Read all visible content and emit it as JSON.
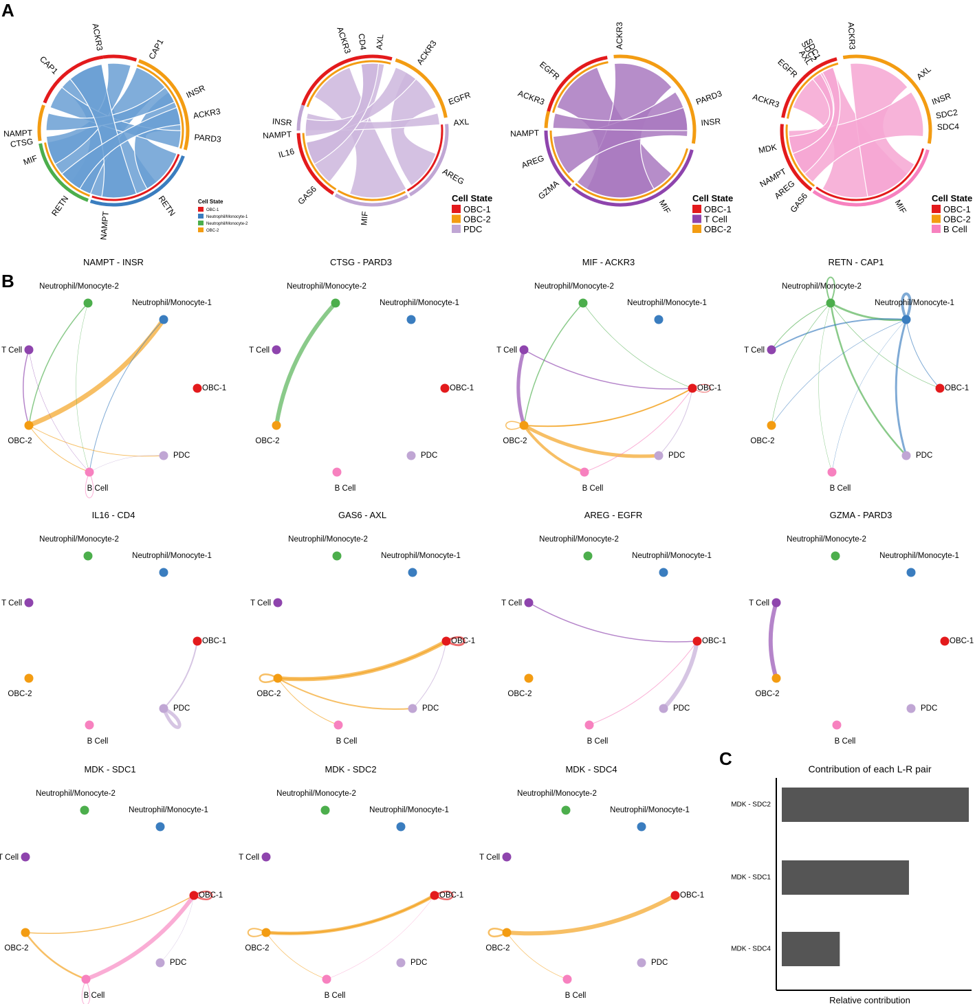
{
  "panel_labels": {
    "a": "A",
    "b": "B",
    "c": "C"
  },
  "colors": {
    "OBC-1": "#e31a1c",
    "OBC-2": "#f39c12",
    "Neutrophil/Monocyte-1": "#3a7dbf",
    "Neutrophil/Monocyte-2": "#4cae4c",
    "T Cell": "#8e44ad",
    "B Cell": "#f781bf",
    "PDC": "#c0a6d4",
    "bar": "#555555"
  },
  "chords": [
    {
      "legend_title": "Cell State",
      "legend": [
        "OBC-1",
        "Neutrophil/Monocyte-1",
        "Neutrophil/Monocyte-2",
        "OBC-2"
      ],
      "ribbon_color": "#6a9fd4",
      "labels": [
        "ACKR3",
        "CAP1",
        "INSR",
        "ACKR3",
        "PARD3",
        "CAP1",
        "NAMPT",
        "CTSG",
        "MIF",
        "RETN",
        "NAMPT",
        "RETN"
      ]
    },
    {
      "legend_title": "Cell State",
      "legend": [
        "OBC-1",
        "OBC-2",
        "PDC"
      ],
      "ribbon_color": "#cdb6dd",
      "labels": [
        "ACKR3",
        "CD4",
        "AXL",
        "ACKR3",
        "EGFR",
        "AXL",
        "INSR",
        "NAMPT",
        "IL16",
        "GAS6",
        "MIF",
        "AREG"
      ]
    },
    {
      "legend_title": "Cell State",
      "legend": [
        "OBC-1",
        "T Cell",
        "OBC-2"
      ],
      "ribbon_color": "#a979c0",
      "labels": [
        "ACKR3",
        "EGFR",
        "ACKR3",
        "PARD3",
        "INSR",
        "NAMPT",
        "AREG",
        "GZMA",
        "MIF"
      ]
    },
    {
      "legend_title": "Cell State",
      "legend": [
        "OBC-1",
        "OBC-2",
        "B Cell"
      ],
      "ribbon_color": "#f6a6d2",
      "labels": [
        "ACKR3",
        "SDC1",
        "SDC2",
        "AXL",
        "EGFR",
        "ACKR3",
        "AXL",
        "INSR",
        "SDC2",
        "SDC4",
        "MDK",
        "NAMPT",
        "AREG",
        "GAS6",
        "MIF"
      ]
    }
  ],
  "node_names": [
    "Neutrophil/Monocyte-2",
    "Neutrophil/Monocyte-1",
    "T Cell",
    "OBC-1",
    "OBC-2",
    "PDC",
    "B Cell"
  ],
  "networks": [
    {
      "title": "NAMPT - INSR",
      "edges": [
        [
          "OBC-2",
          "Neutrophil/Monocyte-1",
          7
        ],
        [
          "Neutrophil/Monocyte-2",
          "OBC-2",
          1.5
        ],
        [
          "T Cell",
          "OBC-2",
          1.5
        ],
        [
          "Neutrophil/Monocyte-1",
          "B Cell",
          1
        ],
        [
          "OBC-2",
          "PDC",
          1
        ],
        [
          "OBC-2",
          "B Cell",
          1
        ],
        [
          "T Cell",
          "B Cell",
          0.5
        ],
        [
          "Neutrophil/Monocyte-2",
          "B Cell",
          0.5
        ],
        [
          "PDC",
          "B Cell",
          0.5
        ],
        [
          "B Cell",
          "B Cell",
          1
        ]
      ]
    },
    {
      "title": "CTSG - PARD3",
      "edges": [
        [
          "Neutrophil/Monocyte-2",
          "OBC-2",
          6
        ]
      ]
    },
    {
      "title": "MIF - ACKR3",
      "edges": [
        [
          "T Cell",
          "OBC-2",
          5
        ],
        [
          "T Cell",
          "OBC-1",
          1.5
        ],
        [
          "Neutrophil/Monocyte-2",
          "OBC-2",
          1.5
        ],
        [
          "Neutrophil/Monocyte-2",
          "OBC-1",
          0.7
        ],
        [
          "OBC-2",
          "OBC-1",
          2
        ],
        [
          "OBC-2",
          "OBC-1",
          1
        ],
        [
          "OBC-2",
          "PDC",
          5
        ],
        [
          "OBC-2",
          "B Cell",
          4
        ],
        [
          "B Cell",
          "OBC-1",
          1
        ],
        [
          "PDC",
          "OBC-1",
          1
        ],
        [
          "OBC-2",
          "OBC-2",
          1.5
        ],
        [
          "OBC-1",
          "OBC-1",
          1
        ]
      ]
    },
    {
      "title": "RETN - CAP1",
      "edges": [
        [
          "Neutrophil/Monocyte-2",
          "Neutrophil/Monocyte-1",
          3
        ],
        [
          "Neutrophil/Monocyte-2",
          "PDC",
          2.5
        ],
        [
          "Neutrophil/Monocyte-1",
          "PDC",
          3
        ],
        [
          "Neutrophil/Monocyte-1",
          "T Cell",
          2
        ],
        [
          "Neutrophil/Monocyte-2",
          "T Cell",
          1
        ],
        [
          "Neutrophil/Monocyte-1",
          "OBC-1",
          1
        ],
        [
          "Neutrophil/Monocyte-2",
          "OBC-1",
          0.7
        ],
        [
          "Neutrophil/Monocyte-1",
          "OBC-2",
          0.7
        ],
        [
          "Neutrophil/Monocyte-2",
          "OBC-2",
          0.7
        ],
        [
          "Neutrophil/Monocyte-1",
          "B Cell",
          0.5
        ],
        [
          "Neutrophil/Monocyte-2",
          "B Cell",
          0.5
        ],
        [
          "Neutrophil/Monocyte-1",
          "Neutrophil/Monocyte-1",
          4
        ],
        [
          "Neutrophil/Monocyte-2",
          "Neutrophil/Monocyte-2",
          2
        ]
      ]
    },
    {
      "title": "IL16 - CD4",
      "edges": [
        [
          "PDC",
          "OBC-1",
          2
        ],
        [
          "PDC",
          "PDC",
          5
        ]
      ]
    },
    {
      "title": "GAS6 - AXL",
      "edges": [
        [
          "OBC-2",
          "OBC-1",
          6
        ],
        [
          "OBC-2",
          "OBC-1",
          1.5
        ],
        [
          "OBC-2",
          "PDC",
          2
        ],
        [
          "OBC-2",
          "B Cell",
          1
        ],
        [
          "PDC",
          "OBC-1",
          1
        ],
        [
          "OBC-2",
          "OBC-2",
          2.5
        ],
        [
          "OBC-1",
          "OBC-1",
          3
        ]
      ]
    },
    {
      "title": "AREG - EGFR",
      "edges": [
        [
          "T Cell",
          "OBC-1",
          1.5
        ],
        [
          "PDC",
          "OBC-1",
          6
        ],
        [
          "B Cell",
          "OBC-1",
          1
        ]
      ]
    },
    {
      "title": "GZMA - PARD3",
      "edges": [
        [
          "T Cell",
          "OBC-2",
          6
        ]
      ]
    },
    {
      "title": "MDK - SDC1",
      "edges": [
        [
          "OBC-2",
          "OBC-1",
          1.5
        ],
        [
          "OBC-2",
          "B Cell",
          2.5
        ],
        [
          "B Cell",
          "OBC-1",
          6
        ],
        [
          "PDC",
          "OBC-1",
          0.5
        ],
        [
          "B Cell",
          "B Cell",
          1
        ],
        [
          "OBC-1",
          "OBC-1",
          2.5
        ]
      ]
    },
    {
      "title": "MDK - SDC2",
      "edges": [
        [
          "OBC-2",
          "OBC-1",
          5
        ],
        [
          "OBC-2",
          "OBC-1",
          2
        ],
        [
          "OBC-2",
          "B Cell",
          0.7
        ],
        [
          "B Cell",
          "OBC-1",
          0.5
        ],
        [
          "OBC-2",
          "OBC-2",
          2
        ],
        [
          "OBC-1",
          "OBC-1",
          2.5
        ]
      ]
    },
    {
      "title": "MDK - SDC4",
      "edges": [
        [
          "OBC-2",
          "OBC-1",
          6
        ],
        [
          "OBC-2",
          "B Cell",
          0.7
        ],
        [
          "OBC-2",
          "OBC-2",
          2.5
        ]
      ]
    }
  ],
  "chart_data": {
    "type": "bar",
    "title": "Contribution of each L-R pair",
    "categories": [
      "MDK - SDC2",
      "MDK - SDC1",
      "MDK - SDC4"
    ],
    "values": [
      1.0,
      0.68,
      0.31
    ],
    "xlabel": "Relative contribution",
    "ylabel": "",
    "xlim": [
      0,
      1.05
    ]
  }
}
